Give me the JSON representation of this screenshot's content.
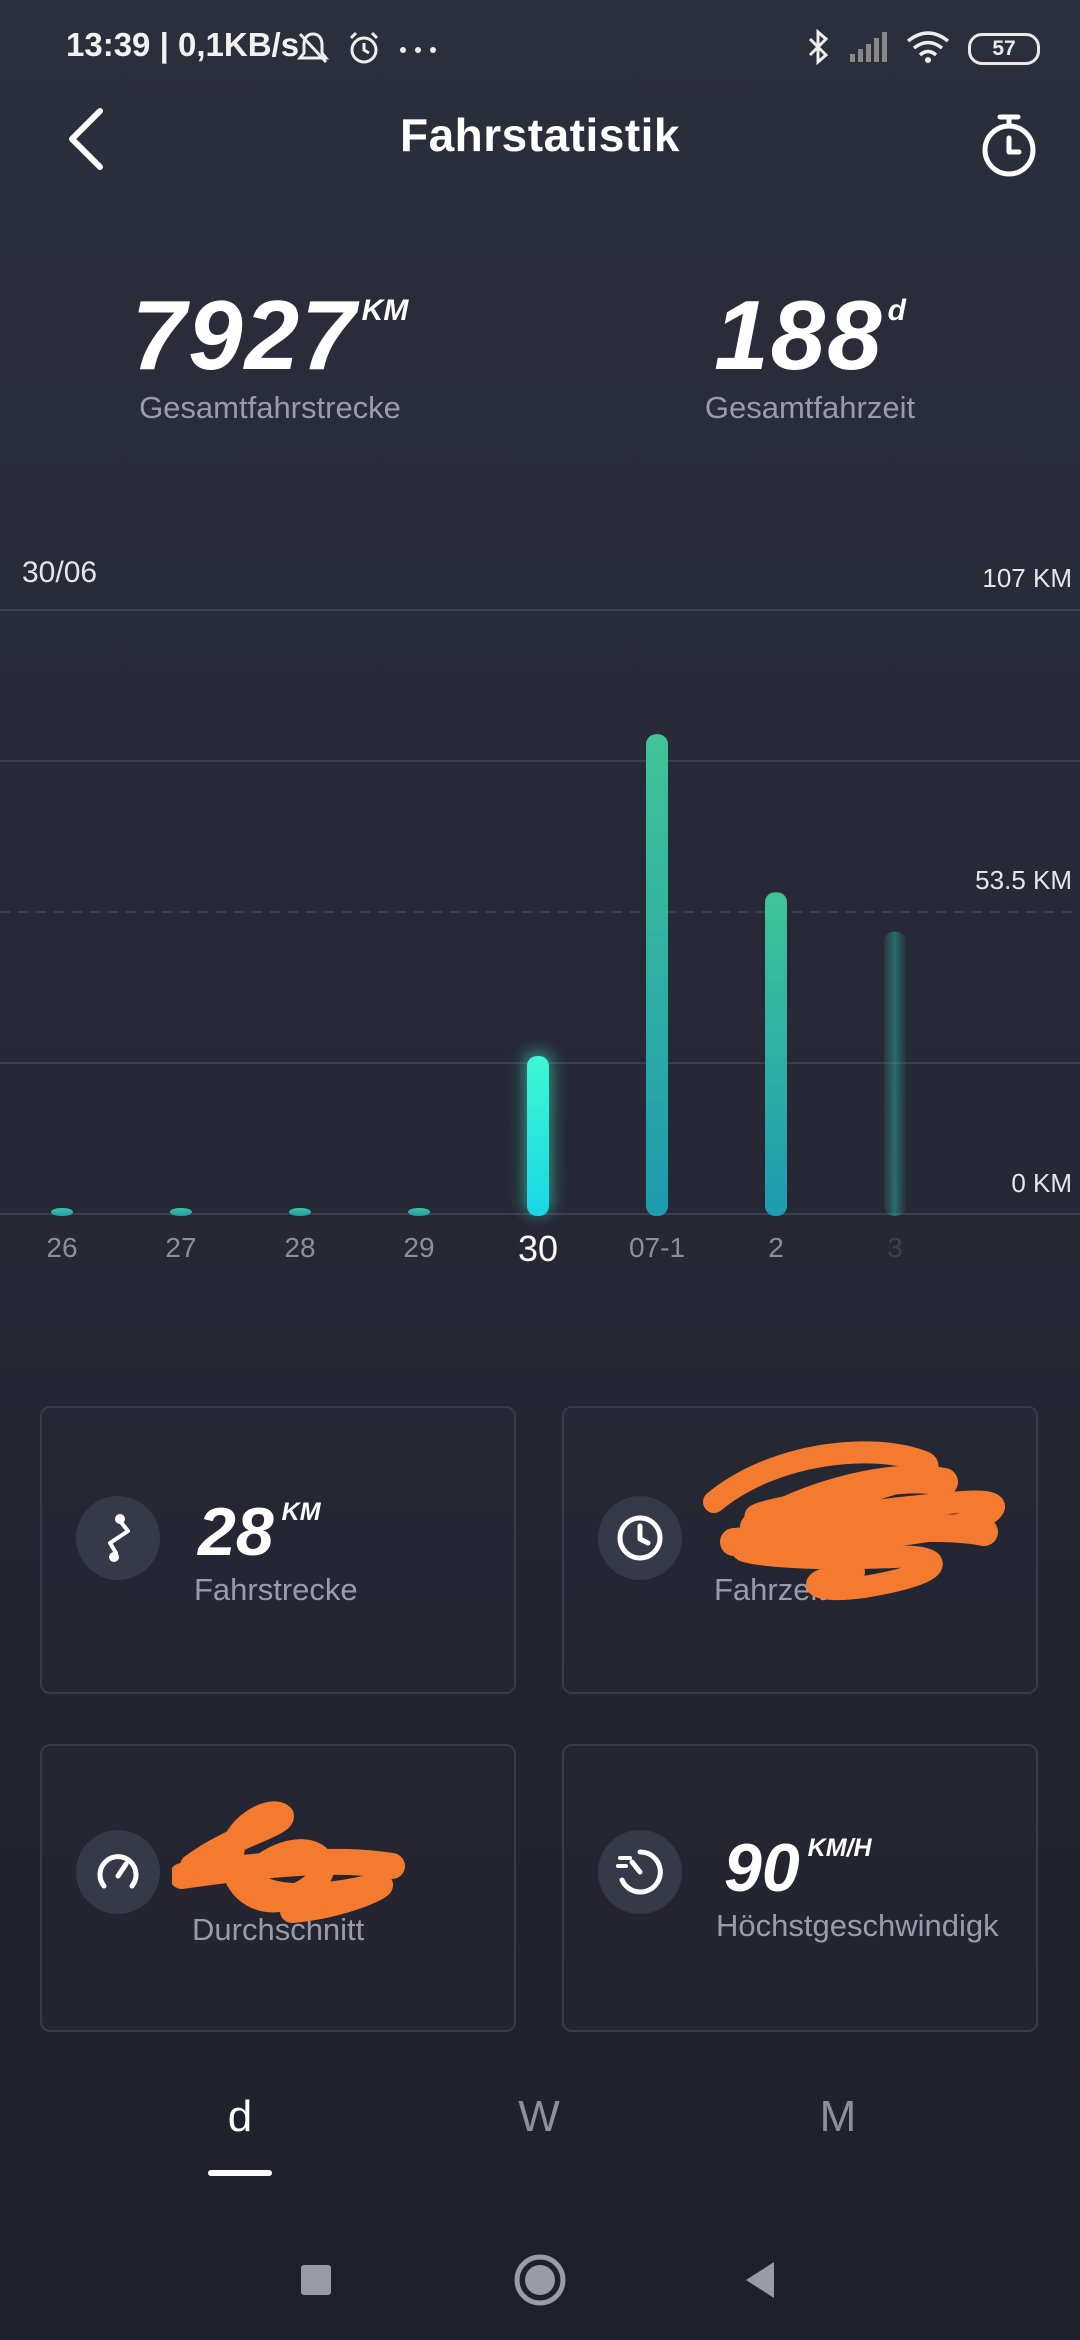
{
  "status_bar": {
    "time": "13:39",
    "network_speed": "0,1KB/s",
    "battery": "57",
    "icons": [
      "bell-off-icon",
      "alarm-icon",
      "more-dots-icon",
      "bluetooth-icon",
      "signal-icon",
      "wifi-icon",
      "battery-icon"
    ]
  },
  "header": {
    "title": "Fahrstatistik",
    "back_icon": "back-chevron-icon",
    "timer_icon": "stopwatch-icon"
  },
  "summary": {
    "distance": {
      "value": "7927",
      "unit": "KM",
      "label": "Gesamtfahrstrecke"
    },
    "time": {
      "value": "188",
      "unit": "d",
      "label": "Gesamtfahrzeit"
    }
  },
  "chart_data": {
    "type": "bar",
    "selected_date_label": "30/06",
    "categories": [
      "26",
      "27",
      "28",
      "29",
      "30",
      "07-1",
      "2",
      "3"
    ],
    "values": [
      0.5,
      0.5,
      0.5,
      0.5,
      28,
      85,
      57,
      50
    ],
    "selected_index": 4,
    "ylim": [
      0,
      107
    ],
    "y_tick_labels": [
      "107 KM",
      "53.5 KM",
      "0 KM"
    ],
    "grid": true,
    "colors": {
      "bar_top": "#3fc497",
      "bar_bottom": "#1e9bb0",
      "selected_top": "#3ff7d2",
      "selected_bottom": "#19d6e6",
      "grid": "#3b3e4c"
    }
  },
  "cards": [
    {
      "icon": "route-icon",
      "value": "28",
      "unit": "KM",
      "label": "Fahrstrecke",
      "obscured": false
    },
    {
      "icon": "clock-icon",
      "value": "",
      "unit": "",
      "label": "Fahrzeit",
      "obscured": true
    },
    {
      "icon": "speedometer-icon",
      "value": "",
      "unit": "",
      "label": "Durchschnitt",
      "obscured": true
    },
    {
      "icon": "speed-max-icon",
      "value": "90",
      "unit": "KM/H",
      "label": "Höchstgeschwindigk",
      "obscured": false
    }
  ],
  "tabs": [
    {
      "label": "d",
      "active": true
    },
    {
      "label": "W",
      "active": false
    },
    {
      "label": "M",
      "active": false
    }
  ],
  "nav_bar": {
    "icons": [
      "recents-square-icon",
      "home-circle-icon",
      "back-triangle-icon"
    ]
  },
  "scribble_color": "#f47a2f"
}
